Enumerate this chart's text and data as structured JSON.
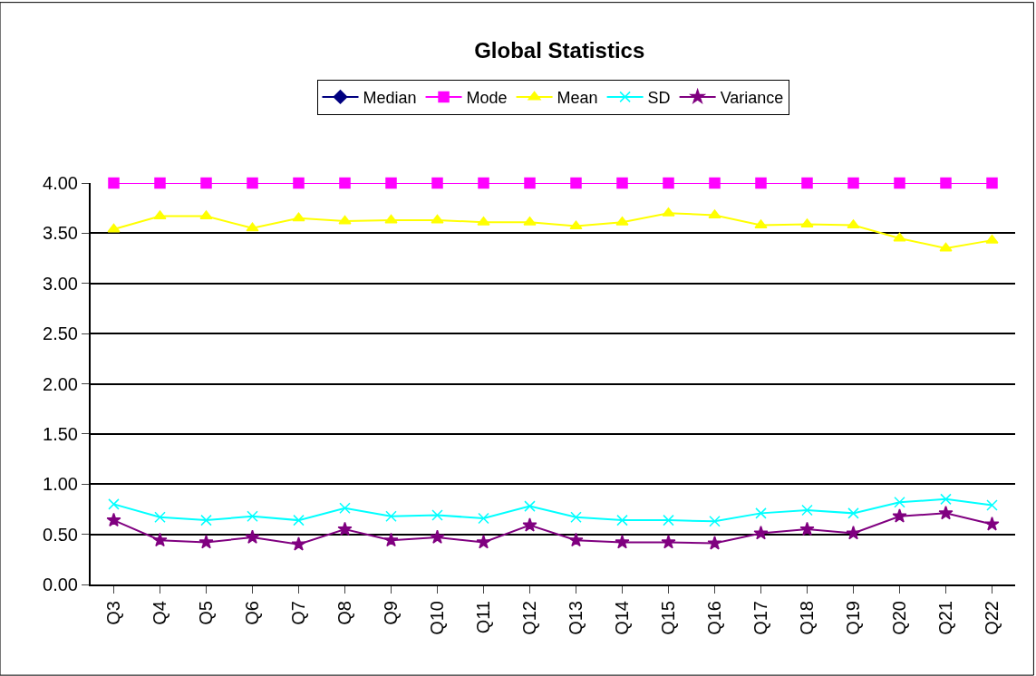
{
  "chart_data": {
    "type": "line",
    "title": "Global Statistics",
    "categories": [
      "Q3",
      "Q4",
      "Q5",
      "Q6",
      "Q7",
      "Q8",
      "Q9",
      "Q10",
      "Q11",
      "Q12",
      "Q13",
      "Q14",
      "Q15",
      "Q16",
      "Q17",
      "Q18",
      "Q19",
      "Q20",
      "Q21",
      "Q22"
    ],
    "series": [
      {
        "name": "Median",
        "color": "#000080",
        "marker": "diamond",
        "values": [
          null,
          null,
          null,
          null,
          null,
          null,
          null,
          null,
          null,
          null,
          null,
          null,
          null,
          null,
          null,
          null,
          null,
          null,
          null,
          null
        ]
      },
      {
        "name": "Mode",
        "color": "#ff00ff",
        "marker": "square",
        "values": [
          4,
          4,
          4,
          4,
          4,
          4,
          4,
          4,
          4,
          4,
          4,
          4,
          4,
          4,
          4,
          4,
          4,
          4,
          4,
          4
        ]
      },
      {
        "name": "Mean",
        "color": "#ffff00",
        "marker": "triangle",
        "values": [
          3.54,
          3.67,
          3.67,
          3.55,
          3.65,
          3.62,
          3.63,
          3.63,
          3.61,
          3.61,
          3.57,
          3.61,
          3.7,
          3.68,
          3.58,
          3.59,
          3.58,
          3.45,
          3.35,
          3.43
        ]
      },
      {
        "name": "SD",
        "color": "#00ffff",
        "marker": "cross",
        "values": [
          0.8,
          0.67,
          0.64,
          0.68,
          0.64,
          0.76,
          0.68,
          0.69,
          0.66,
          0.78,
          0.67,
          0.64,
          0.64,
          0.63,
          0.71,
          0.74,
          0.71,
          0.82,
          0.85,
          0.79
        ]
      },
      {
        "name": "Variance",
        "color": "#800080",
        "marker": "star",
        "values": [
          0.64,
          0.44,
          0.42,
          0.47,
          0.4,
          0.55,
          0.44,
          0.47,
          0.42,
          0.59,
          0.44,
          0.42,
          0.42,
          0.41,
          0.51,
          0.55,
          0.51,
          0.68,
          0.71,
          0.6
        ]
      }
    ],
    "ylim": [
      0,
      4
    ],
    "yticks": [
      {
        "value": 0,
        "label": "0.00"
      },
      {
        "value": 0.5,
        "label": "0.50"
      },
      {
        "value": 1,
        "label": "1.00"
      },
      {
        "value": 1.5,
        "label": "1.50"
      },
      {
        "value": 2,
        "label": "2.00"
      },
      {
        "value": 2.5,
        "label": "2.50"
      },
      {
        "value": 3,
        "label": "3.00"
      },
      {
        "value": 3.5,
        "label": "3.50"
      },
      {
        "value": 4,
        "label": "4.00"
      }
    ],
    "grid": "y",
    "legend": "top",
    "line_style": "solid"
  }
}
